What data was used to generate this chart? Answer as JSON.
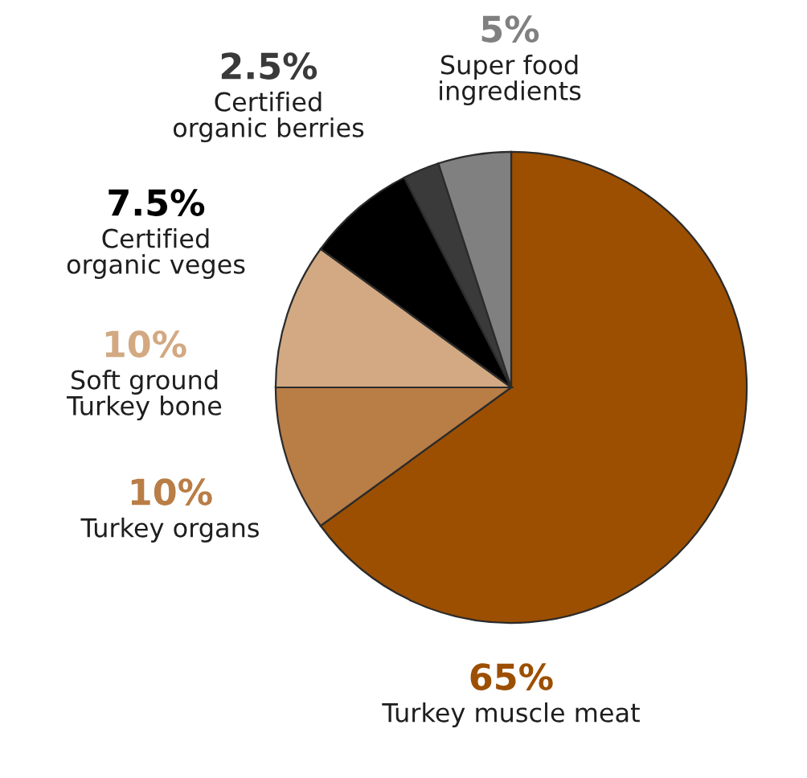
{
  "chart_data": {
    "type": "pie",
    "categories": [
      "Turkey muscle meat",
      "Turkey organs",
      "Soft ground\nTurkey bone",
      "Certified\norganic veges",
      "Certified\norganic berries",
      "Super food\ningredients"
    ],
    "values": [
      65,
      10,
      10,
      7.5,
      2.5,
      5
    ],
    "colors": [
      "#9c4f00",
      "#b97d46",
      "#d2a982",
      "#000000",
      "#3a3a3a",
      "#808080"
    ],
    "value_labels": [
      "65%",
      "10%",
      "10%",
      "7.5%",
      "2.5%",
      "5%"
    ]
  }
}
